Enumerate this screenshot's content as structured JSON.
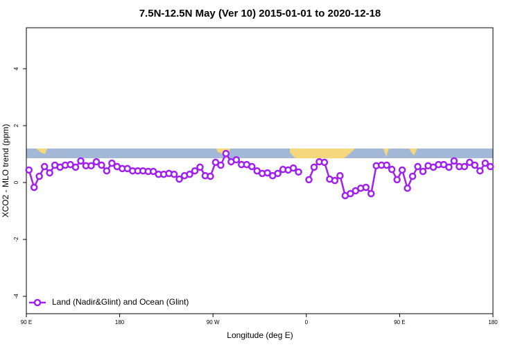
{
  "chart_data": {
    "type": "line",
    "title": "7.5N-12.5N May (Ver 10)   2015-01-01 to 2020-12-18",
    "x_label": "Longitude (deg E)",
    "y_label": "XCO2 - MLO trend (ppm)",
    "xlim": [
      90,
      540
    ],
    "ylim": [
      -4.61,
      5.44
    ],
    "xticks": [
      {
        "value": 90,
        "label": "90 E"
      },
      180,
      {
        "value": 270,
        "label": "90 W"
      },
      {
        "value": 360,
        "label": "0"
      },
      {
        "value": 450,
        "label": "90 E"
      },
      {
        "value": 540,
        "label": "180"
      }
    ],
    "yticks": [
      -4,
      -2,
      0,
      2,
      4
    ],
    "legend": "bottom-left",
    "x": [
      92.5,
      97.5,
      102.5,
      107.5,
      112.5,
      117.5,
      122.5,
      127.5,
      132.5,
      137.5,
      142.5,
      147.5,
      152.5,
      157.5,
      162.5,
      167.5,
      172.5,
      177.5,
      182.5,
      187.5,
      192.5,
      197.5,
      202.5,
      207.5,
      212.5,
      217.5,
      222.5,
      227.5,
      232.5,
      237.5,
      242.5,
      247.5,
      252.5,
      257.5,
      262.5,
      267.5,
      272.5,
      277.5,
      282.5,
      287.5,
      292.5,
      297.5,
      302.5,
      307.5,
      312.5,
      317.5,
      322.5,
      327.5,
      332.5,
      337.5,
      342.5,
      347.5,
      352.5,
      357.5,
      362.5,
      367.5,
      372.5,
      377.5,
      382.5,
      387.5,
      392.5,
      397.5,
      402.5,
      407.5,
      412.5,
      417.5,
      422.5,
      427.5,
      432.5,
      437.5,
      442.5,
      447.5,
      452.5,
      457.5,
      462.5,
      467.5,
      472.5,
      477.5,
      482.5,
      487.5,
      492.5,
      497.5,
      502.5,
      507.5,
      512.5,
      517.5,
      522.5,
      527.5,
      532.5,
      537.5
    ],
    "series": [
      {
        "name": "Land (Nadir&Glint) and Ocean (Glint)",
        "color": "#a020f0",
        "values": [
          0.44,
          -0.17,
          0.22,
          0.56,
          0.34,
          0.61,
          0.54,
          0.61,
          0.63,
          0.54,
          0.76,
          0.59,
          0.59,
          0.73,
          0.61,
          0.41,
          0.68,
          0.56,
          0.49,
          0.49,
          0.41,
          0.41,
          0.41,
          0.39,
          0.39,
          0.29,
          0.29,
          0.32,
          0.29,
          0.12,
          0.24,
          0.29,
          0.41,
          0.54,
          0.24,
          0.22,
          0.71,
          0.61,
          1.02,
          0.73,
          0.8,
          0.63,
          0.63,
          0.56,
          0.41,
          0.32,
          0.34,
          0.24,
          0.32,
          0.46,
          0.44,
          0.51,
          0.37,
          null,
          0.1,
          0.54,
          0.73,
          0.71,
          0.12,
          0.07,
          0.24,
          -0.46,
          -0.39,
          -0.29,
          -0.2,
          -0.17,
          -0.39,
          0.59,
          0.61,
          0.61,
          0.46,
          0.1,
          0.44,
          -0.2,
          0.22,
          0.56,
          0.39,
          0.59,
          0.54,
          0.63,
          0.63,
          0.54,
          0.76,
          0.56,
          0.56,
          0.71,
          0.61,
          0.41,
          0.68,
          0.56
        ]
      }
    ]
  }
}
